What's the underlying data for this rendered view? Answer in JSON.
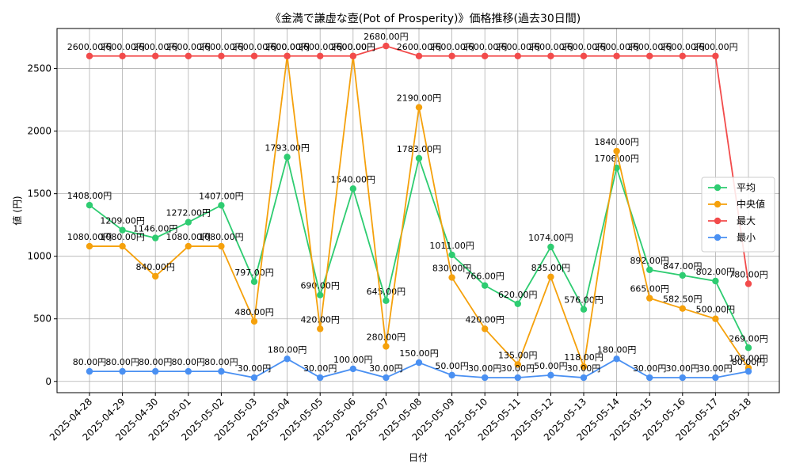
{
  "chart_data": {
    "type": "line",
    "title": "《金満で謙虚な壺(Pot of Prosperity)》価格推移(過去30日間)",
    "xlabel": "日付",
    "ylabel": "値 (円)",
    "ylim": [
      -90,
      2820
    ],
    "yticks": [
      0,
      500,
      1000,
      1500,
      2000,
      2500
    ],
    "grid": true,
    "legend_position": "right",
    "label_suffix": "円",
    "categories": [
      "2025-04-28",
      "2025-04-29",
      "2025-04-30",
      "2025-05-01",
      "2025-05-02",
      "2025-05-03",
      "2025-05-04",
      "2025-05-05",
      "2025-05-06",
      "2025-05-07",
      "2025-05-08",
      "2025-05-09",
      "2025-05-10",
      "2025-05-11",
      "2025-05-12",
      "2025-05-13",
      "2025-05-14",
      "2025-05-15",
      "2025-05-16",
      "2025-05-17",
      "2025-05-18"
    ],
    "series": [
      {
        "name": "平均",
        "color": "#2ecc71",
        "values": [
          1408,
          1209,
          1146,
          1272,
          1407,
          797,
          1793,
          690,
          1540,
          645,
          1783,
          1011,
          766,
          620,
          1074,
          576,
          1706,
          892,
          847,
          802,
          269
        ]
      },
      {
        "name": "中央値",
        "color": "#f5a10c",
        "values": [
          1080,
          1080,
          840,
          1080,
          1080,
          480,
          2600,
          420,
          2600,
          280,
          2190,
          830,
          420,
          135,
          835,
          118,
          1840,
          665,
          582.5,
          500,
          108
        ]
      },
      {
        "name": "最大",
        "color": "#f24b4b",
        "values": [
          2600,
          2600,
          2600,
          2600,
          2600,
          2600,
          2600,
          2600,
          2600,
          2680,
          2600,
          2600,
          2600,
          2600,
          2600,
          2600,
          2600,
          2600,
          2600,
          2600,
          780
        ]
      },
      {
        "name": "最小",
        "color": "#4a90f2",
        "values": [
          80,
          80,
          80,
          80,
          80,
          30,
          180,
          30,
          100,
          30,
          150,
          50,
          30,
          30,
          50,
          30,
          180,
          30,
          30,
          30,
          80
        ]
      }
    ]
  }
}
